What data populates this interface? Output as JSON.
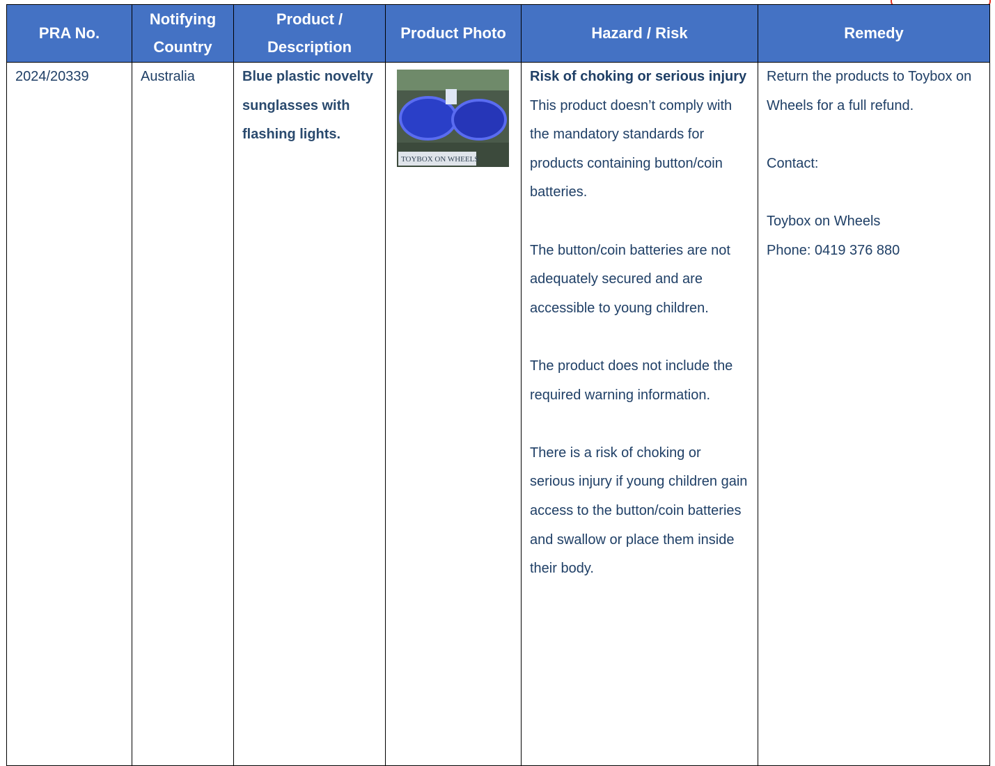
{
  "table": {
    "header": [
      "PRA No.",
      "Notifying Country",
      "Product / Description",
      "Product Photo",
      "Hazard / Risk",
      "Remedy"
    ],
    "rows": [
      {
        "pra_no": "2024/20339",
        "country": "Australia",
        "description": "Blue plastic novelty sunglasses with flashing lights.",
        "photo_caption": "TOYBOX ON WHEELS",
        "hazard_title": "Risk of choking or serious injury",
        "hazard_paragraphs": [
          "This product doesn’t comply with the mandatory standards for products containing button/coin batteries.",
          "The button/coin batteries are not adequately secured and are accessible to young children.",
          "The product does not include the required warning information.",
          "There is a risk of choking or serious injury if young children gain access to the button/coin batteries and swallow or place them inside their body."
        ],
        "remedy_paragraphs": [
          "Return the products to Toybox on Wheels for a full refund.",
          "Contact:",
          "Toybox on Wheels",
          "Phone: 0419 376 880"
        ]
      }
    ]
  }
}
